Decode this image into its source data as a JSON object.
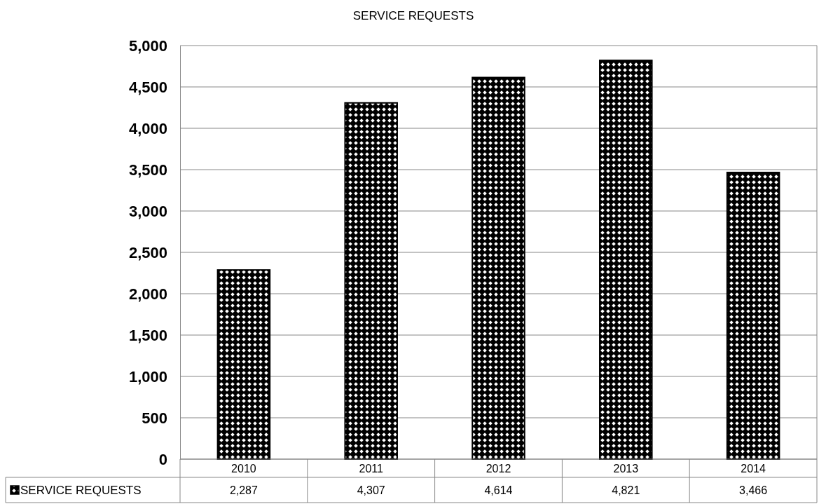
{
  "chart_data": {
    "type": "bar",
    "title": "SERVICE REQUESTS",
    "categories": [
      "2010",
      "2011",
      "2012",
      "2013",
      "2014"
    ],
    "series": [
      {
        "name": "SERVICE REQUESTS",
        "color": "#000000",
        "values": [
          2287,
          4307,
          4614,
          4821,
          3466
        ],
        "value_labels": [
          "2,287",
          "4,307",
          "4,614",
          "4,821",
          "3,466"
        ]
      }
    ],
    "ylim": [
      0,
      5000
    ],
    "yticks": [
      0,
      {
        "value": 500,
        "label": "500"
      },
      {
        "value": 1000,
        "label": "1,000"
      },
      {
        "value": 1500,
        "label": "1,500"
      },
      {
        "value": 2000,
        "label": "2,000"
      },
      {
        "value": 2500,
        "label": "2,500"
      },
      {
        "value": 3000,
        "label": "3,000"
      },
      {
        "value": 3500,
        "label": "3,500"
      },
      {
        "value": 4000,
        "label": "4,000"
      },
      {
        "value": 4500,
        "label": "4,500"
      },
      {
        "value": 5000,
        "label": "5,000"
      }
    ],
    "grid": "y",
    "legend": "bottom"
  }
}
